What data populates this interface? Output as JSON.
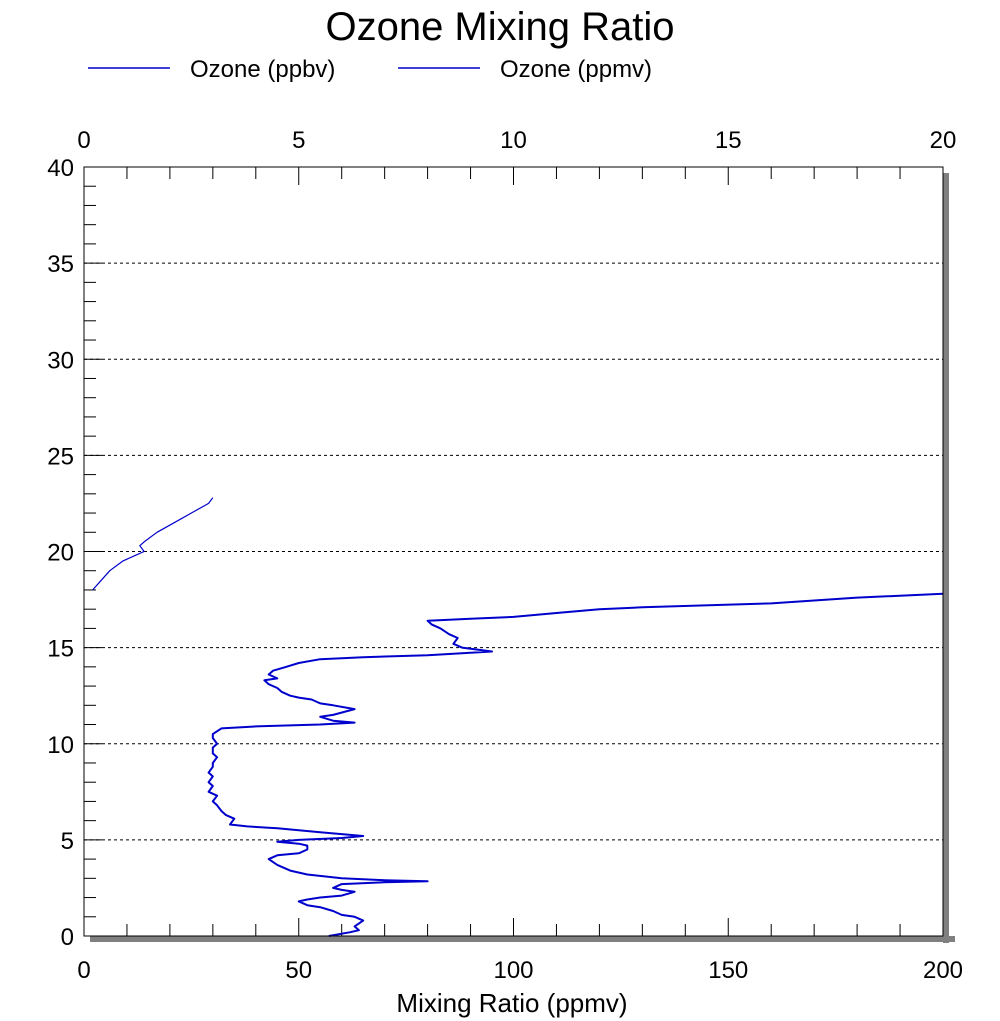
{
  "chart_data": {
    "type": "line",
    "title": "Ozone Mixing Ratio",
    "xlabel": "Mixing Ratio (ppmv)",
    "x2label": "",
    "ylabel": "",
    "xlim": [
      0,
      200
    ],
    "x2lim": [
      0,
      20
    ],
    "ylim": [
      0,
      40
    ],
    "x_ticks": [
      "0",
      "50",
      "100",
      "150",
      "200"
    ],
    "x2_ticks": [
      "0",
      "5",
      "10",
      "15",
      "20"
    ],
    "y_ticks": [
      "0",
      "5",
      "10",
      "15",
      "20",
      "25",
      "30",
      "35",
      "40"
    ],
    "grid": "horizontal dotted",
    "legend": "top",
    "series": [
      {
        "name": "Ozone (ppbv)",
        "axis": "bottom",
        "color": "#0000cc",
        "points": [
          [
            57,
            0.0
          ],
          [
            62,
            0.2
          ],
          [
            64,
            0.3
          ],
          [
            63,
            0.5
          ],
          [
            65,
            0.8
          ],
          [
            63,
            1.0
          ],
          [
            60,
            1.1
          ],
          [
            58,
            1.3
          ],
          [
            55,
            1.5
          ],
          [
            52,
            1.6
          ],
          [
            50,
            1.8
          ],
          [
            52,
            1.9
          ],
          [
            55,
            2.0
          ],
          [
            60,
            2.1
          ],
          [
            63,
            2.3
          ],
          [
            60,
            2.4
          ],
          [
            58,
            2.5
          ],
          [
            60,
            2.7
          ],
          [
            70,
            2.8
          ],
          [
            80,
            2.85
          ],
          [
            70,
            2.9
          ],
          [
            60,
            3.0
          ],
          [
            52,
            3.2
          ],
          [
            48,
            3.4
          ],
          [
            45,
            3.7
          ],
          [
            43,
            4.0
          ],
          [
            45,
            4.2
          ],
          [
            50,
            4.3
          ],
          [
            52,
            4.5
          ],
          [
            52,
            4.7
          ],
          [
            50,
            4.8
          ],
          [
            45,
            4.9
          ],
          [
            50,
            5.0
          ],
          [
            60,
            5.1
          ],
          [
            65,
            5.2
          ],
          [
            55,
            5.4
          ],
          [
            45,
            5.6
          ],
          [
            38,
            5.7
          ],
          [
            34,
            5.8
          ],
          [
            35,
            6.1
          ],
          [
            33,
            6.3
          ],
          [
            32,
            6.5
          ],
          [
            31,
            6.8
          ],
          [
            30,
            7.0
          ],
          [
            31,
            7.3
          ],
          [
            29,
            7.5
          ],
          [
            30,
            7.8
          ],
          [
            29,
            8.0
          ],
          [
            30,
            8.3
          ],
          [
            29,
            8.5
          ],
          [
            30,
            8.8
          ],
          [
            30,
            9.0
          ],
          [
            31,
            9.3
          ],
          [
            30,
            9.5
          ],
          [
            30,
            9.8
          ],
          [
            31,
            10.0
          ],
          [
            30,
            10.3
          ],
          [
            30,
            10.5
          ],
          [
            32,
            10.8
          ],
          [
            40,
            10.9
          ],
          [
            55,
            11.0
          ],
          [
            63,
            11.1
          ],
          [
            58,
            11.2
          ],
          [
            55,
            11.4
          ],
          [
            58,
            11.5
          ],
          [
            63,
            11.8
          ],
          [
            58,
            12.0
          ],
          [
            55,
            12.1
          ],
          [
            53,
            12.3
          ],
          [
            50,
            12.4
          ],
          [
            48,
            12.5
          ],
          [
            46,
            12.7
          ],
          [
            45,
            12.9
          ],
          [
            43,
            13.1
          ],
          [
            42,
            13.3
          ],
          [
            45,
            13.4
          ],
          [
            43,
            13.6
          ],
          [
            44,
            13.8
          ],
          [
            47,
            14.0
          ],
          [
            50,
            14.2
          ],
          [
            55,
            14.4
          ],
          [
            65,
            14.5
          ],
          [
            80,
            14.6
          ],
          [
            95,
            14.8
          ],
          [
            88,
            15.0
          ],
          [
            86,
            15.2
          ],
          [
            87,
            15.5
          ],
          [
            85,
            15.7
          ],
          [
            83,
            16.0
          ],
          [
            81,
            16.2
          ],
          [
            80,
            16.4
          ],
          [
            90,
            16.5
          ],
          [
            100,
            16.6
          ],
          [
            110,
            16.8
          ],
          [
            120,
            17.0
          ],
          [
            130,
            17.1
          ],
          [
            160,
            17.3
          ],
          [
            180,
            17.6
          ],
          [
            200,
            17.8
          ]
        ]
      },
      {
        "name": "Ozone (ppmv)",
        "axis": "top",
        "color": "#0000cc",
        "points": [
          [
            0.2,
            18.0
          ],
          [
            0.4,
            18.5
          ],
          [
            0.6,
            19.0
          ],
          [
            0.9,
            19.5
          ],
          [
            1.2,
            19.8
          ],
          [
            1.4,
            20.0
          ],
          [
            1.3,
            20.3
          ],
          [
            1.4,
            20.5
          ],
          [
            1.7,
            21.0
          ],
          [
            2.1,
            21.5
          ],
          [
            2.5,
            22.0
          ],
          [
            2.9,
            22.5
          ],
          [
            3.0,
            22.8
          ]
        ]
      }
    ]
  }
}
